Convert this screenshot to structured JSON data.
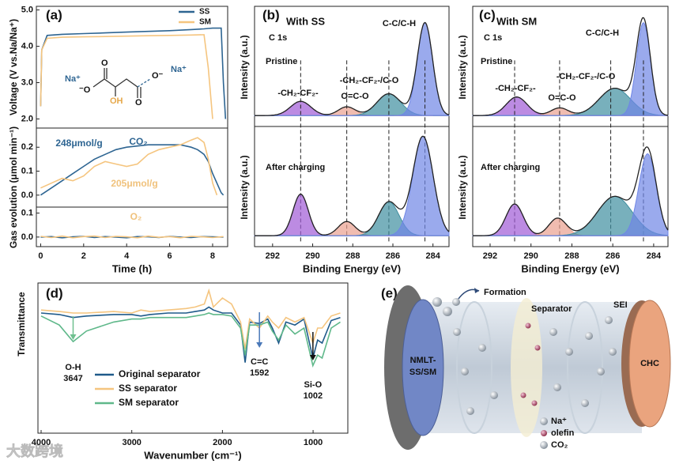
{
  "chart_data": [
    {
      "type": "line",
      "ylabel": "Voltage (V vs.Na/Na⁺)",
      "legend": "upper right",
      "xlim": [
        -0.2,
        8.7
      ],
      "ylim": [
        1.75,
        5.1
      ],
      "yticks": [
        {
          "value": 2,
          "label": "2.0"
        },
        {
          "value": 3,
          "label": "3.0"
        },
        {
          "value": 4,
          "label": "4.0"
        },
        {
          "value": 5,
          "label": "5.0"
        }
      ],
      "x": [
        0,
        0.05,
        0.3,
        1,
        2,
        3,
        4,
        5,
        6,
        7,
        7.6,
        7.8,
        8.0,
        8.2,
        8.4,
        8.5,
        8.6
      ],
      "series": [
        {
          "name": "SS",
          "color": "#2e6592",
          "values": [
            2.35,
            3.9,
            4.3,
            4.33,
            4.35,
            4.37,
            4.39,
            4.41,
            4.43,
            4.46,
            4.48,
            4.49,
            4.5,
            4.5,
            4.5,
            3.0,
            2.0
          ]
        },
        {
          "name": "SM",
          "color": "#f5c57f",
          "values": [
            2.35,
            3.9,
            4.22,
            4.25,
            4.26,
            4.27,
            4.28,
            4.29,
            4.3,
            4.31,
            4.32,
            3.4,
            2.0,
            null,
            null,
            null,
            null
          ]
        }
      ],
      "molecule": [
        "Na⁺",
        "O",
        "⁻O",
        "OH",
        "O",
        "O⁻",
        "Na⁺"
      ]
    },
    {
      "type": "line",
      "ylabel": "Gas evolution (μmol min⁻¹)",
      "xlim": [
        -0.2,
        8.7
      ],
      "ylim": [
        -0.05,
        0.28
      ],
      "yticks": [
        {
          "value": 0,
          "label": "0.0"
        },
        0.1,
        0.2
      ],
      "x": [
        0,
        0.5,
        1,
        1.5,
        2,
        2.5,
        3,
        3.5,
        4,
        4.5,
        5,
        5.5,
        6,
        6.5,
        7,
        7.3,
        7.6,
        7.8,
        8,
        8.2,
        8.4,
        8.5
      ],
      "series": [
        {
          "color": "#2e6592",
          "values": [
            0,
            0.03,
            0.06,
            0.09,
            0.12,
            0.15,
            0.17,
            0.19,
            0.2,
            0.205,
            0.21,
            0.21,
            0.21,
            0.21,
            0.2,
            0.19,
            0.17,
            0.14,
            0.09,
            0.05,
            0.01,
            0
          ]
        },
        {
          "color": "#f5c57f",
          "values": [
            0.03,
            0.05,
            0.07,
            0.06,
            0.08,
            0.12,
            0.14,
            0.13,
            0.12,
            0.13,
            0.17,
            0.19,
            0.2,
            0.21,
            0.23,
            0.24,
            0.22,
            0.15,
            0.05,
            0,
            null,
            null
          ]
        }
      ],
      "annotations": [
        {
          "text": "248μmol/g",
          "color": "#2e6592"
        },
        {
          "text": "CO₂",
          "color": "#2e6592"
        },
        {
          "text": "205μmol/g",
          "color": "#f0c27c"
        }
      ]
    },
    {
      "type": "line",
      "xlabel": "Time (h)",
      "xlim": [
        -0.2,
        8.7
      ],
      "ylim": [
        -0.04,
        0.125
      ],
      "xticks": [
        0,
        2,
        4,
        6,
        8
      ],
      "yticks": [
        {
          "value": 0,
          "label": "0.0"
        },
        0.1
      ],
      "x": [
        0,
        0.5,
        1,
        1.5,
        2,
        2.5,
        3,
        3.5,
        4,
        4.5,
        5,
        5.5,
        6,
        6.5,
        7,
        7.5,
        8,
        8.5
      ],
      "series": [
        {
          "color": "#2e6592",
          "values": [
            0,
            0.002,
            -0.003,
            0.001,
            0.003,
            -0.002,
            0.002,
            0,
            -0.003,
            0.002,
            0.001,
            -0.002,
            0.003,
            0,
            -0.002,
            0.002,
            0.001,
            0
          ]
        },
        {
          "color": "#f5c57f",
          "values": [
            0.003,
            -0.002,
            0.004,
            -0.003,
            0.002,
            0.004,
            -0.002,
            0.003,
            0.001,
            -0.003,
            0.004,
            -0.001,
            0.002,
            -0.003,
            0.003,
            0.001,
            -0.002,
            0.002
          ]
        }
      ],
      "annotations": [
        {
          "text": "O₂",
          "color": "#f0c27c"
        }
      ]
    },
    {
      "type": "peakfit",
      "title": "With SS",
      "subtitle": "C 1s",
      "label": "Pristine",
      "ylabel": "Intensity (a.u.)",
      "xlim": [
        292.9,
        283.2
      ],
      "ylim": [
        -0.1,
        1
      ],
      "peaks": [
        {
          "name": "-CH₂-CF₂-",
          "center": 290.6,
          "height": 0.13,
          "width": 1.2,
          "color": "#a05ad6"
        },
        {
          "name": "O=C-O",
          "center": 288.3,
          "height": 0.08,
          "width": 1.0,
          "color": "#e9a08e"
        },
        {
          "name": "-CH₂-CF₂-/C-O",
          "center": 286.2,
          "height": 0.2,
          "width": 1.4,
          "color": "#3f8ea0"
        },
        {
          "name": "C-C/C-H",
          "center": 284.4,
          "height": 0.85,
          "width": 0.9,
          "color": "#6f86e6"
        }
      ],
      "guides": [
        290.6,
        288.3,
        286.2,
        284.4
      ]
    },
    {
      "type": "peakfit",
      "label": "After charging",
      "ylabel": "Intensity (a.u.)",
      "xlabel": "Binding Energy (eV)",
      "xlim": [
        292.9,
        283.2
      ],
      "ylim": [
        -0.1,
        1
      ],
      "xticks": [
        292,
        290,
        288,
        286,
        284
      ],
      "peaks": [
        {
          "center": 290.6,
          "height": 0.38,
          "width": 0.9,
          "color": "#a05ad6"
        },
        {
          "center": 288.3,
          "height": 0.13,
          "width": 1.0,
          "color": "#e9a08e"
        },
        {
          "center": 286.2,
          "height": 0.31,
          "width": 1.2,
          "color": "#3f8ea0"
        },
        {
          "center": 284.5,
          "height": 0.91,
          "width": 1.2,
          "color": "#6f86e6"
        }
      ]
    },
    {
      "type": "peakfit",
      "title": "With SM",
      "subtitle": "C 1s",
      "label": "Pristine",
      "ylabel": "Intensity (a.u.)",
      "xlim": [
        292.85,
        283.3
      ],
      "ylim": [
        -0.1,
        1
      ],
      "peaks": [
        {
          "name": "-CH₂-CF₂-",
          "center": 290.7,
          "height": 0.17,
          "width": 1.2,
          "color": "#a05ad6"
        },
        {
          "name": "O=C-O",
          "center": 288.6,
          "height": 0.07,
          "width": 1.0,
          "color": "#e9a08e"
        },
        {
          "name": "-CH₂-CF₂-/C-O",
          "center": 285.9,
          "height": 0.25,
          "width": 1.8,
          "color": "#3f8ea0"
        },
        {
          "name": "C-C/C-H",
          "center": 284.5,
          "height": 0.85,
          "width": 0.8,
          "color": "#6f86e6"
        }
      ],
      "guides": [
        290.8,
        288.6,
        286.1,
        284.5
      ]
    },
    {
      "type": "peakfit",
      "label": "After charging",
      "ylabel": "Intensity (a.u.)",
      "xlabel": "Binding Energy (eV)",
      "xlim": [
        292.85,
        283.3
      ],
      "ylim": [
        -0.1,
        1
      ],
      "xticks": [
        292,
        290,
        288,
        286,
        284
      ],
      "peaks": [
        {
          "center": 290.8,
          "height": 0.29,
          "width": 1.0,
          "color": "#a05ad6"
        },
        {
          "center": 288.7,
          "height": 0.16,
          "width": 1.0,
          "color": "#e9a08e"
        },
        {
          "center": 285.9,
          "height": 0.36,
          "width": 2.0,
          "color": "#3f8ea0"
        },
        {
          "center": 284.3,
          "height": 0.75,
          "width": 1.0,
          "color": "#6f86e6"
        }
      ]
    },
    {
      "type": "line",
      "xlabel": "Wavenumber (cm⁻¹)",
      "ylabel": "Transmittance",
      "legend": "lower left",
      "xlim": [
        4035,
        617
      ],
      "ylim": [
        0,
        1
      ],
      "xticks": [
        4000,
        3000,
        2000,
        1000
      ],
      "x": [
        4000,
        3800,
        3647,
        3500,
        3200,
        3000,
        2900,
        2800,
        2600,
        2400,
        2300,
        2200,
        2150,
        2100,
        2000,
        1900,
        1800,
        1750,
        1700,
        1592,
        1500,
        1450,
        1380,
        1300,
        1200,
        1100,
        1002,
        950,
        900,
        800,
        700
      ],
      "series": [
        {
          "name": "Original separator",
          "color": "#1f5a8a",
          "values": [
            0.8,
            0.79,
            0.77,
            0.78,
            0.79,
            0.79,
            0.78,
            0.79,
            0.8,
            0.8,
            0.81,
            0.82,
            0.84,
            0.82,
            0.8,
            0.8,
            0.72,
            0.47,
            0.74,
            0.73,
            0.76,
            0.7,
            0.6,
            0.74,
            0.72,
            0.76,
            0.5,
            0.62,
            0.6,
            0.75,
            0.77
          ]
        },
        {
          "name": "SS separator",
          "color": "#f5c57f",
          "values": [
            0.82,
            0.81,
            0.8,
            0.8,
            0.81,
            0.8,
            0.82,
            0.81,
            0.82,
            0.83,
            0.84,
            0.86,
            0.95,
            0.84,
            0.9,
            0.86,
            0.74,
            0.56,
            0.76,
            0.7,
            0.78,
            0.74,
            0.7,
            0.77,
            0.74,
            0.77,
            0.6,
            0.7,
            0.7,
            0.78,
            0.8
          ]
        },
        {
          "name": "SM separator",
          "color": "#5fb88a",
          "values": [
            0.78,
            0.72,
            0.61,
            0.68,
            0.74,
            0.76,
            0.76,
            0.77,
            0.77,
            0.77,
            0.78,
            0.79,
            0.8,
            0.79,
            0.79,
            0.78,
            0.7,
            0.52,
            0.72,
            0.72,
            0.74,
            0.68,
            0.62,
            0.72,
            0.66,
            0.7,
            0.45,
            0.52,
            0.5,
            0.7,
            0.74
          ]
        }
      ],
      "annotations": [
        {
          "text": "O-H",
          "value": 3647,
          "color": "#6fc08f"
        },
        {
          "text": "C=C",
          "value": 1592,
          "color": "#4a78b8"
        },
        {
          "text": "Si-O",
          "value": 1002,
          "color": "#111111"
        }
      ]
    }
  ],
  "panel_labels": [
    "(a)",
    "(b)",
    "(c)",
    "(d)",
    "(e)"
  ],
  "diagram": {
    "formation": "Formation",
    "separator": "Separator",
    "sei": "SEI",
    "anode": [
      "NMLT-",
      "SS/SM"
    ],
    "cathode": "CHC",
    "legend": [
      "Na⁺",
      "olefin",
      "CO₂"
    ]
  },
  "watermark": "大数跨境"
}
